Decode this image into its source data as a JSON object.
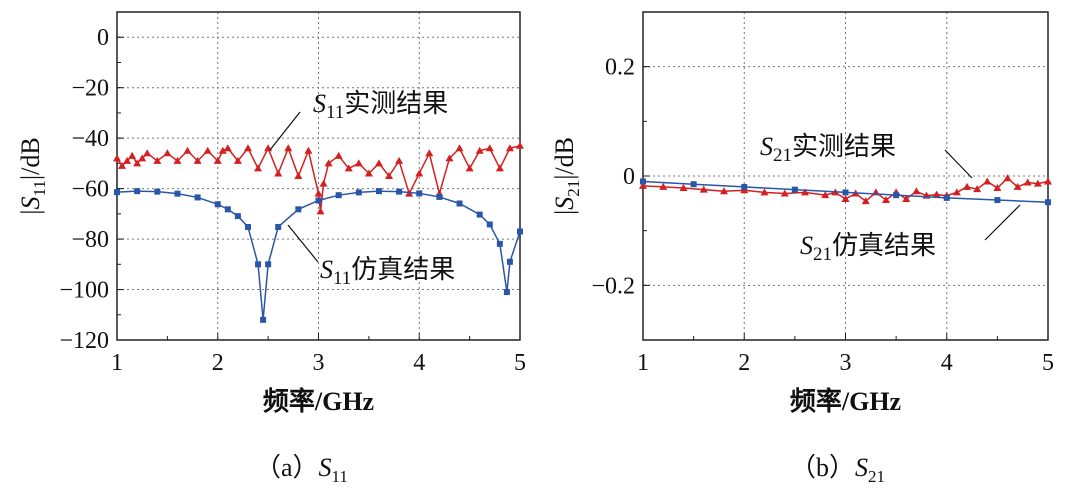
{
  "chart_data": [
    {
      "type": "line",
      "caption": {
        "prefix": "（a）",
        "main": "S",
        "sub": "11"
      },
      "xlabel": "频率/GHz",
      "ylabel": {
        "pre": "|S",
        "sub": "11",
        "post": "|/dB"
      },
      "xlim": [
        1,
        5
      ],
      "ylim": [
        -120,
        10
      ],
      "xticks": [
        1,
        2,
        3,
        4,
        5
      ],
      "yticks": [
        0,
        -20,
        -40,
        -60,
        -80,
        -100,
        -120
      ],
      "grid": true,
      "series": [
        {
          "name": "S11实测结果",
          "label": {
            "main": "S",
            "sub": "11",
            "text": "实测结果"
          },
          "color": "#d42020",
          "marker": "triangle",
          "x": [
            1.0,
            1.05,
            1.1,
            1.15,
            1.2,
            1.25,
            1.3,
            1.4,
            1.5,
            1.6,
            1.7,
            1.8,
            1.9,
            2.0,
            2.05,
            2.1,
            2.2,
            2.3,
            2.4,
            2.5,
            2.6,
            2.7,
            2.8,
            2.9,
            3.0,
            3.02,
            3.05,
            3.1,
            3.2,
            3.3,
            3.4,
            3.5,
            3.6,
            3.7,
            3.8,
            3.9,
            4.0,
            4.1,
            4.2,
            4.3,
            4.4,
            4.5,
            4.6,
            4.7,
            4.8,
            4.9,
            5.0
          ],
          "y": [
            -48,
            -51,
            -49,
            -47,
            -50,
            -48,
            -46,
            -49,
            -46,
            -49,
            -45,
            -49,
            -45,
            -49,
            -45,
            -44,
            -49,
            -44,
            -52,
            -44,
            -54,
            -44,
            -55,
            -45,
            -62,
            -69,
            -58,
            -50,
            -47,
            -52,
            -50,
            -54,
            -50,
            -55,
            -49,
            -62,
            -54,
            -46,
            -62,
            -48,
            -44,
            -52,
            -45,
            -44,
            -52,
            -44,
            -43
          ]
        },
        {
          "name": "S11仿真结果",
          "label": {
            "main": "S",
            "sub": "11",
            "text": "仿真结果"
          },
          "color": "#2a56a8",
          "marker": "square",
          "x": [
            1.0,
            1.2,
            1.4,
            1.6,
            1.8,
            2.0,
            2.1,
            2.2,
            2.3,
            2.4,
            2.45,
            2.5,
            2.6,
            2.8,
            3.0,
            3.2,
            3.4,
            3.6,
            3.8,
            4.0,
            4.2,
            4.4,
            4.6,
            4.7,
            4.8,
            4.87,
            4.9,
            5.0
          ],
          "y": [
            -61.4,
            -61.0,
            -61.2,
            -62.0,
            -63.5,
            -66.2,
            -68.2,
            -70.9,
            -75.2,
            -90,
            -112,
            -90,
            -75.2,
            -68.2,
            -64.7,
            -62.6,
            -61.5,
            -61.0,
            -61.2,
            -61.9,
            -63.3,
            -65.9,
            -70.3,
            -74.2,
            -81.9,
            -101,
            -89,
            -77
          ]
        }
      ]
    },
    {
      "type": "line",
      "caption": {
        "prefix": "（b）",
        "main": "S",
        "sub": "21"
      },
      "xlabel": "频率/GHz",
      "ylabel": {
        "pre": "|S",
        "sub": "21",
        "post": "|/dB"
      },
      "xlim": [
        1,
        5
      ],
      "ylim": [
        -0.3,
        0.3
      ],
      "xticks": [
        1,
        2,
        3,
        4,
        5
      ],
      "yticks": [
        0.2,
        0,
        -0.2
      ],
      "ytick_labels": [
        "0.2",
        "0",
        "−0.2"
      ],
      "grid": true,
      "series": [
        {
          "name": "S21实测结果",
          "label": {
            "main": "S",
            "sub": "21",
            "text": "实测结果"
          },
          "color": "#d42020",
          "marker": "triangle",
          "x": [
            1.0,
            1.2,
            1.4,
            1.6,
            1.8,
            2.0,
            2.2,
            2.4,
            2.6,
            2.8,
            2.9,
            3.0,
            3.1,
            3.2,
            3.3,
            3.4,
            3.5,
            3.6,
            3.7,
            3.8,
            3.9,
            4.0,
            4.1,
            4.2,
            4.3,
            4.4,
            4.5,
            4.6,
            4.7,
            4.8,
            4.9,
            5.0
          ],
          "y": [
            -0.018,
            -0.02,
            -0.022,
            -0.025,
            -0.028,
            -0.026,
            -0.03,
            -0.032,
            -0.03,
            -0.035,
            -0.03,
            -0.042,
            -0.032,
            -0.046,
            -0.03,
            -0.044,
            -0.03,
            -0.042,
            -0.028,
            -0.036,
            -0.034,
            -0.036,
            -0.03,
            -0.02,
            -0.024,
            -0.01,
            -0.022,
            -0.004,
            -0.02,
            -0.012,
            -0.014,
            -0.01
          ]
        },
        {
          "name": "S21仿真结果",
          "label": {
            "main": "S",
            "sub": "21",
            "text": "仿真结果"
          },
          "color": "#2a56a8",
          "marker": "square",
          "x": [
            1.0,
            1.5,
            2.0,
            2.5,
            3.0,
            3.5,
            4.0,
            4.5,
            5.0
          ],
          "y": [
            -0.01,
            -0.015,
            -0.02,
            -0.025,
            -0.03,
            -0.035,
            -0.04,
            -0.044,
            -0.048
          ]
        }
      ]
    }
  ]
}
